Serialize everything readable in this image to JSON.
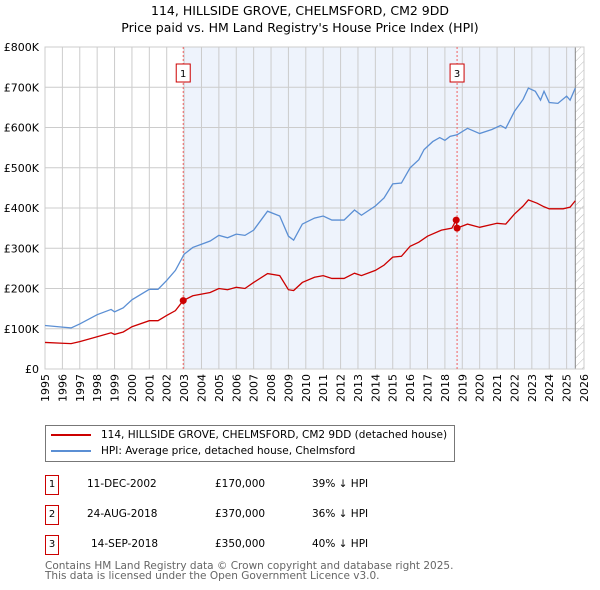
{
  "chart_data": {
    "type": "line",
    "title": "114, HILLSIDE GROVE, CHELMSFORD, CM2 9DD",
    "subtitle": "Price paid vs. HM Land Registry's House Price Index (HPI)",
    "xlim": [
      1995,
      2026
    ],
    "ylim": [
      0,
      800000
    ],
    "x_ticks": [
      "1995",
      "1996",
      "1997",
      "1998",
      "1999",
      "2000",
      "2001",
      "2002",
      "2003",
      "2004",
      "2005",
      "2006",
      "2007",
      "2008",
      "2009",
      "2010",
      "2011",
      "2012",
      "2013",
      "2014",
      "2015",
      "2016",
      "2017",
      "2018",
      "2019",
      "2020",
      "2021",
      "2022",
      "2023",
      "2024",
      "2025",
      "2026"
    ],
    "y_ticks": [
      {
        "v": 0,
        "label": "£0"
      },
      {
        "v": 100000,
        "label": "£100K"
      },
      {
        "v": 200000,
        "label": "£200K"
      },
      {
        "v": 300000,
        "label": "£300K"
      },
      {
        "v": 400000,
        "label": "£400K"
      },
      {
        "v": 500000,
        "label": "£500K"
      },
      {
        "v": 600000,
        "label": "£600K"
      },
      {
        "v": 700000,
        "label": "£700K"
      },
      {
        "v": 800000,
        "label": "£800K"
      }
    ],
    "grid": true,
    "shaded_from": 2002.95,
    "hatched_from": 2025.5,
    "series": [
      {
        "name": "114, HILLSIDE GROVE, CHELMSFORD, CM2 9DD (detached house)",
        "color": "#cc0000",
        "x": [
          1995,
          1996,
          1996.5,
          1997,
          1998,
          1998.8,
          1999,
          1999.5,
          2000,
          2001,
          2001.5,
          2002,
          2002.5,
          2002.95,
          2003.5,
          2004.5,
          2005,
          2005.5,
          2006,
          2006.5,
          2007,
          2007.8,
          2008.5,
          2009,
          2009.3,
          2009.8,
          2010.5,
          2011,
          2011.5,
          2012.2,
          2012.8,
          2013.2,
          2014,
          2014.5,
          2015,
          2015.5,
          2016,
          2016.5,
          2017,
          2017.8,
          2018.4,
          2018.65,
          2018.7,
          2019.3,
          2020,
          2021,
          2021.5,
          2022,
          2022.5,
          2022.8,
          2023.3,
          2023.7,
          2024,
          2024.8,
          2025.2,
          2025.5
        ],
        "y": [
          66000,
          64000,
          63000,
          68000,
          80000,
          90000,
          86000,
          92000,
          105000,
          120000,
          120000,
          133000,
          145000,
          170000,
          182000,
          190000,
          200000,
          197000,
          203000,
          200000,
          215000,
          237000,
          232000,
          197000,
          195000,
          215000,
          228000,
          232000,
          225000,
          225000,
          238000,
          232000,
          245000,
          258000,
          278000,
          280000,
          305000,
          315000,
          330000,
          345000,
          350000,
          370000,
          350000,
          360000,
          352000,
          362000,
          360000,
          385000,
          405000,
          420000,
          412000,
          403000,
          398000,
          398000,
          402000,
          418000
        ]
      },
      {
        "name": "HPI: Average price, detached house, Chelmsford",
        "color": "#5b8fd4",
        "x": [
          1995,
          1996,
          1996.5,
          1997,
          1998,
          1998.8,
          1999,
          1999.5,
          2000,
          2001,
          2001.5,
          2002,
          2002.5,
          2003,
          2003.5,
          2004,
          2004.5,
          2005,
          2005.5,
          2006,
          2006.5,
          2007,
          2007.8,
          2008.5,
          2009,
          2009.3,
          2009.8,
          2010.5,
          2011,
          2011.5,
          2012.2,
          2012.8,
          2013.2,
          2014,
          2014.5,
          2015,
          2015.5,
          2016,
          2016.5,
          2016.8,
          2017.3,
          2017.7,
          2018,
          2018.3,
          2018.7,
          2019.3,
          2020,
          2020.7,
          2021.2,
          2021.5,
          2022,
          2022.5,
          2022.8,
          2023.2,
          2023.5,
          2023.7,
          2024,
          2024.5,
          2025,
          2025.2,
          2025.5
        ],
        "y": [
          108000,
          104000,
          102000,
          112000,
          135000,
          148000,
          142000,
          152000,
          172000,
          198000,
          198000,
          220000,
          245000,
          285000,
          302000,
          310000,
          318000,
          332000,
          326000,
          335000,
          332000,
          345000,
          392000,
          380000,
          330000,
          320000,
          360000,
          375000,
          380000,
          370000,
          370000,
          395000,
          382000,
          405000,
          425000,
          460000,
          462000,
          500000,
          520000,
          545000,
          565000,
          575000,
          568000,
          578000,
          582000,
          598000,
          585000,
          595000,
          605000,
          598000,
          640000,
          670000,
          698000,
          690000,
          668000,
          690000,
          662000,
          660000,
          678000,
          668000,
          698000
        ]
      }
    ],
    "sales": [
      {
        "id": "1",
        "x": 2002.95,
        "y": 170000
      },
      {
        "id": "2",
        "x": 2018.65,
        "y": 370000
      },
      {
        "id": "3",
        "x": 2018.7,
        "y": 350000
      }
    ],
    "chart_labels": [
      {
        "id": "1",
        "x": 2002.95
      },
      {
        "id": "3",
        "x": 2018.7
      }
    ]
  },
  "legend": {
    "red": "114, HILLSIDE GROVE, CHELMSFORD, CM2 9DD (detached house)",
    "blue": "HPI: Average price, detached house, Chelmsford"
  },
  "transactions": [
    {
      "num": "1",
      "date": "11-DEC-2002",
      "price": "£170,000",
      "hpi": "39% ↓ HPI"
    },
    {
      "num": "2",
      "date": "24-AUG-2018",
      "price": "£370,000",
      "hpi": "36% ↓ HPI"
    },
    {
      "num": "3",
      "date": "14-SEP-2018",
      "price": "£350,000",
      "hpi": "40% ↓ HPI"
    }
  ],
  "footer": {
    "line1": "Contains HM Land Registry data © Crown copyright and database right 2025.",
    "line2": "This data is licensed under the Open Government Licence v3.0."
  }
}
